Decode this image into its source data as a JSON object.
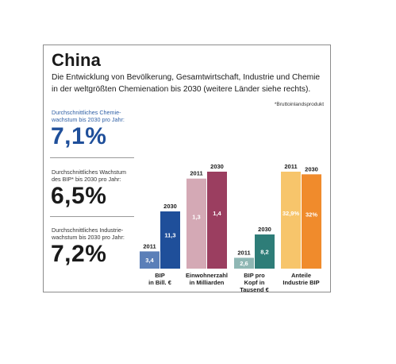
{
  "header": {
    "title": "China",
    "subtitle": "Die Entwicklung von Bevölkerung, Gesamtwirtschaft, Industrie und Chemie in der weltgrößten Chemienation bis 2030 (weitere Länder siehe rechts).",
    "footnote": "*Bruttoinlandsprodukt"
  },
  "kpis": [
    {
      "label_line1": "Durchschnittliches Chemie-",
      "label_line2": "wachstum bis 2030 pro Jahr:",
      "value": "7,1%"
    },
    {
      "label_line1": "Durchschnittliches Wachstum",
      "label_line2": "des BIP* bis 2030 pro Jahr:",
      "value": "6,5%"
    },
    {
      "label_line1": "Durchschnittliches Industrie-",
      "label_line2": "wachstum bis 2030 pro Jahr:",
      "value": "7,2%"
    }
  ],
  "colors": {
    "blue_2011": "#5b7fb8",
    "blue_2030": "#1f4f9a",
    "pink_2011": "#d4a9b5",
    "pink_2030": "#9b3e60",
    "teal_2011": "#8fb7b4",
    "teal_2030": "#2e7d78",
    "orange_2011": "#f7c56b",
    "orange_2030": "#f08b2c"
  },
  "chart_data": {
    "type": "bar",
    "series_years": [
      "2011",
      "2030"
    ],
    "groups": [
      {
        "label_line1": "BIP",
        "label_line2": "in Bill. €",
        "label_line3": "",
        "values": [
          3.4,
          11.3
        ],
        "value_labels": [
          "3,4",
          "11,3"
        ],
        "color_2011": "#5b7fb8",
        "color_2030": "#1f4f9a"
      },
      {
        "label_line1": "Einwohnerzahl",
        "label_line2": "in Milliarden",
        "label_line3": "",
        "values": [
          1.3,
          1.4
        ],
        "value_labels": [
          "1,3",
          "1,4"
        ],
        "color_2011": "#d4a9b5",
        "color_2030": "#9b3e60"
      },
      {
        "label_line1": "BIP pro",
        "label_line2": "Kopf in",
        "label_line3": "Tausend €",
        "values": [
          2.6,
          8.2
        ],
        "value_labels": [
          "2,6",
          "8,2"
        ],
        "color_2011": "#8fb7b4",
        "color_2030": "#2e7d78"
      },
      {
        "label_line1": "Anteile",
        "label_line2": "Industrie BIP",
        "label_line3": "",
        "values": [
          32.9,
          32
        ],
        "value_labels": [
          "32,9%",
          "32%"
        ],
        "color_2011": "#f7c56b",
        "color_2030": "#f08b2c"
      }
    ]
  }
}
